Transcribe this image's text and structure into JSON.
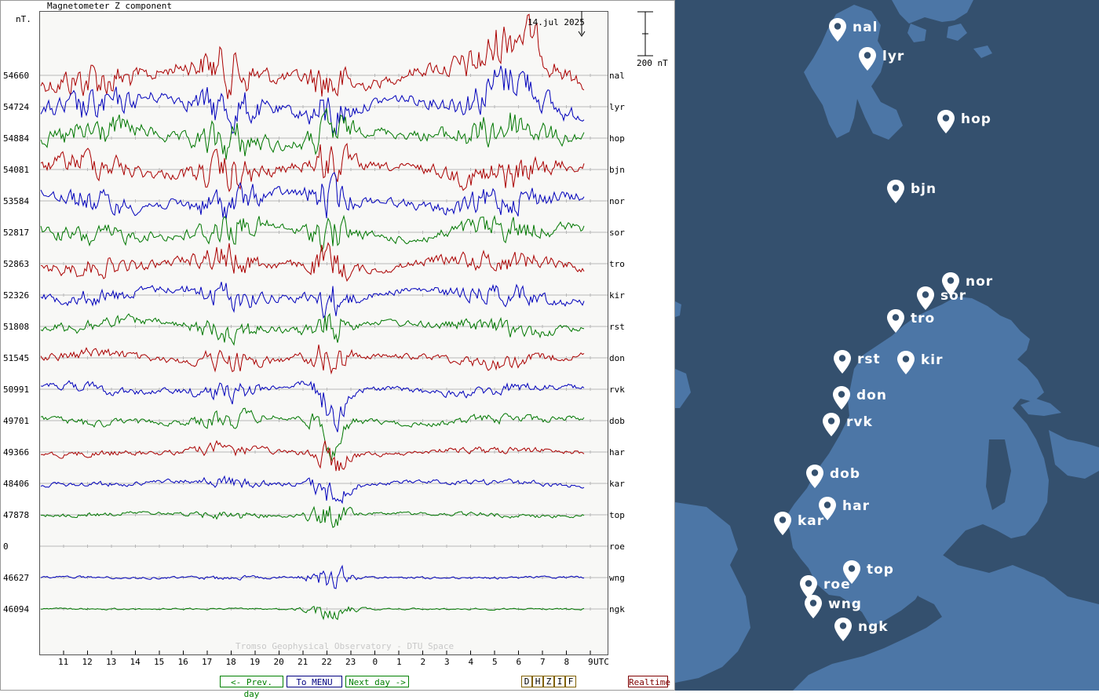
{
  "plot": {
    "title": "Magnetometer Z component",
    "unit": "nT.",
    "date": "14.jul 2025",
    "scale_label": "200 nT",
    "watermark": "Tromso Geophysical Observatory - DTU Space",
    "utc_label": "UTC",
    "hours": [
      "11",
      "12",
      "13",
      "14",
      "15",
      "16",
      "17",
      "18",
      "19",
      "20",
      "21",
      "22",
      "23",
      "0",
      "1",
      "2",
      "3",
      "4",
      "5",
      "6",
      "7",
      "8",
      "9"
    ],
    "stations": [
      {
        "code": "nal",
        "baseline": "54660",
        "color": "#aa0000"
      },
      {
        "code": "lyr",
        "baseline": "54724",
        "color": "#0000bb"
      },
      {
        "code": "hop",
        "baseline": "54884",
        "color": "#007700"
      },
      {
        "code": "bjn",
        "baseline": "54081",
        "color": "#aa0000"
      },
      {
        "code": "nor",
        "baseline": "53584",
        "color": "#0000bb"
      },
      {
        "code": "sor",
        "baseline": "52817",
        "color": "#007700"
      },
      {
        "code": "tro",
        "baseline": "52863",
        "color": "#aa0000"
      },
      {
        "code": "kir",
        "baseline": "52326",
        "color": "#0000bb"
      },
      {
        "code": "rst",
        "baseline": "51808",
        "color": "#007700"
      },
      {
        "code": "don",
        "baseline": "51545",
        "color": "#aa0000"
      },
      {
        "code": "rvk",
        "baseline": "50991",
        "color": "#0000bb"
      },
      {
        "code": "dob",
        "baseline": "49701",
        "color": "#007700"
      },
      {
        "code": "har",
        "baseline": "49366",
        "color": "#aa0000"
      },
      {
        "code": "kar",
        "baseline": "48406",
        "color": "#0000bb"
      },
      {
        "code": "top",
        "baseline": "47878",
        "color": "#007700"
      },
      {
        "code": "roe",
        "baseline": "0",
        "color": "#aa0000"
      },
      {
        "code": "wng",
        "baseline": "46627",
        "color": "#0000bb"
      },
      {
        "code": "ngk",
        "baseline": "46094",
        "color": "#007700"
      }
    ]
  },
  "buttons": {
    "prev_day": "<- Prev. day",
    "menu": "To MENU",
    "next_day": "Next day ->",
    "realtime": "Realtime",
    "components": [
      "D",
      "H",
      "Z",
      "I",
      "F"
    ]
  },
  "map": {
    "markers": [
      "nal",
      "lyr",
      "hop",
      "bjn",
      "nor",
      "sor",
      "tro",
      "rst",
      "kir",
      "don",
      "rvk",
      "dob",
      "har",
      "kar",
      "top",
      "roe",
      "wng",
      "ngk"
    ]
  }
}
